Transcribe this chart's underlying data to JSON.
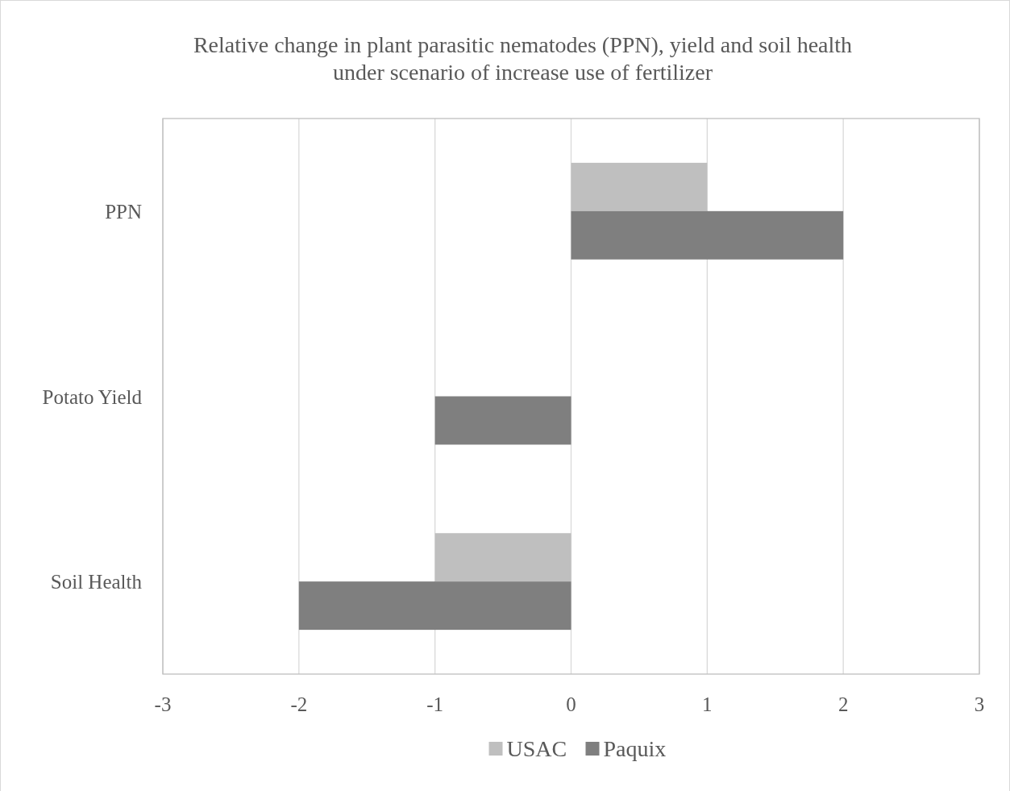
{
  "chart_data": {
    "type": "bar",
    "orientation": "horizontal",
    "title": "Relative change in plant parasitic nematodes (PPN), yield and soil health\nunder scenario of increase use of fertilizer",
    "categories": [
      "PPN",
      "Potato Yield",
      "Soil Health"
    ],
    "series": [
      {
        "name": "USAC",
        "color": "#bfbfbf",
        "values": [
          1,
          0,
          -1
        ]
      },
      {
        "name": "Paquix",
        "color": "#7f7f7f",
        "values": [
          2,
          -1,
          -2
        ]
      }
    ],
    "xlim": [
      -3,
      3
    ],
    "xticks": [
      -3,
      -2,
      -1,
      0,
      1,
      2,
      3
    ],
    "grid": "x",
    "legend": "bottom"
  }
}
